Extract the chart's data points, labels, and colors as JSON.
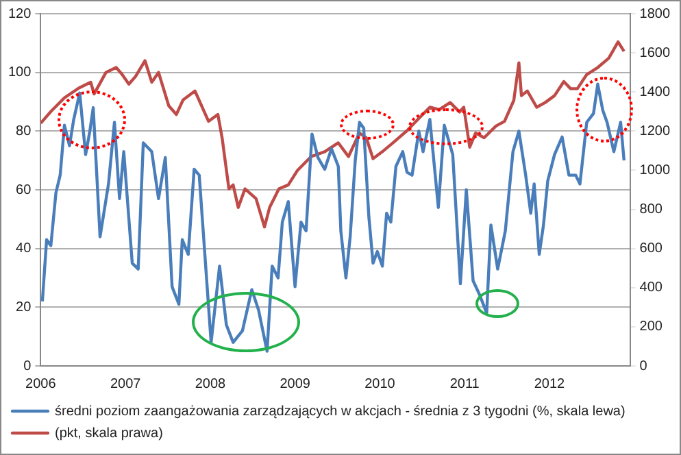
{
  "chart_data": {
    "type": "line",
    "xlim": [
      2006,
      2012.95
    ],
    "xticks": [
      2006,
      2007,
      2008,
      2009,
      2010,
      2011,
      2012
    ],
    "ylim": [
      0,
      120
    ],
    "yticks": [
      0,
      20,
      40,
      60,
      80,
      100,
      120
    ],
    "y2lim": [
      0,
      1800
    ],
    "y2ticks": [
      0,
      200,
      400,
      600,
      800,
      1000,
      1200,
      1400,
      1600,
      1800
    ],
    "grid": "y",
    "legend": "bottom",
    "marker": "none",
    "line_style": "solid",
    "series": [
      {
        "name": "średni poziom zaangażowania zarządzających w akcjach - średnia z 3 tygodni (%, skala lewa)",
        "color": "#4a7ebb",
        "axis": "y",
        "x": [
          2006.02,
          2006.07,
          2006.12,
          2006.18,
          2006.23,
          2006.28,
          2006.34,
          2006.39,
          2006.46,
          2006.53,
          2006.58,
          2006.62,
          2006.7,
          2006.8,
          2006.87,
          2006.93,
          2006.98,
          2007.08,
          2007.15,
          2007.21,
          2007.31,
          2007.39,
          2007.47,
          2007.55,
          2007.63,
          2007.67,
          2007.74,
          2007.81,
          2007.87,
          2008.01,
          2008.11,
          2008.19,
          2008.27,
          2008.38,
          2008.49,
          2008.57,
          2008.67,
          2008.73,
          2008.8,
          2008.85,
          2008.92,
          2009.0,
          2009.07,
          2009.13,
          2009.2,
          2009.27,
          2009.35,
          2009.43,
          2009.51,
          2009.54,
          2009.6,
          2009.65,
          2009.71,
          2009.76,
          2009.81,
          2009.87,
          2009.92,
          2009.97,
          2010.03,
          2010.08,
          2010.13,
          2010.19,
          2010.27,
          2010.32,
          2010.38,
          2010.46,
          2010.51,
          2010.59,
          2010.69,
          2010.76,
          2010.86,
          2010.95,
          2011.02,
          2011.1,
          2011.18,
          2011.26,
          2011.31,
          2011.39,
          2011.48,
          2011.57,
          2011.64,
          2011.72,
          2011.78,
          2011.82,
          2011.88,
          2011.93,
          2011.98,
          2012.06,
          2012.15,
          2012.23,
          2012.31,
          2012.36,
          2012.44,
          2012.52,
          2012.57,
          2012.63,
          2012.68,
          2012.76,
          2012.84,
          2012.88
        ],
        "values": [
          22,
          43,
          41,
          59,
          65,
          82,
          75,
          84,
          93,
          72,
          80,
          88,
          44,
          62,
          83,
          57,
          73,
          35,
          33,
          76,
          73,
          57,
          71,
          27,
          21,
          43,
          38,
          67,
          65,
          8,
          34,
          14,
          8,
          12,
          26,
          19,
          5,
          34,
          30,
          49,
          56,
          27,
          49,
          46,
          79,
          71,
          67,
          74,
          68,
          46,
          30,
          44,
          70,
          83,
          81,
          51,
          35,
          39,
          34,
          52,
          49,
          68,
          73,
          66,
          65,
          80,
          73,
          84,
          54,
          82,
          72,
          28,
          60,
          29,
          24,
          18,
          48,
          33,
          46,
          73,
          80,
          65,
          52,
          62,
          38,
          48,
          63,
          72,
          78,
          65,
          65,
          62,
          83,
          86,
          96,
          87,
          83,
          73,
          83,
          70
        ]
      },
      {
        "name": "(pkt, skala prawa)",
        "color": "#be4b48",
        "axis": "y2",
        "x": [
          2006.0,
          2006.12,
          2006.28,
          2006.45,
          2006.59,
          2006.63,
          2006.77,
          2006.89,
          2006.96,
          2007.04,
          2007.12,
          2007.23,
          2007.31,
          2007.39,
          2007.51,
          2007.6,
          2007.68,
          2007.82,
          2007.98,
          2008.09,
          2008.14,
          2008.22,
          2008.27,
          2008.33,
          2008.41,
          2008.54,
          2008.64,
          2008.7,
          2008.81,
          2008.92,
          2009.03,
          2009.19,
          2009.35,
          2009.51,
          2009.63,
          2009.76,
          2009.84,
          2009.92,
          2010.03,
          2010.16,
          2010.32,
          2010.48,
          2010.59,
          2010.7,
          2010.83,
          2010.94,
          2010.99,
          2011.06,
          2011.13,
          2011.23,
          2011.37,
          2011.47,
          2011.58,
          2011.64,
          2011.67,
          2011.74,
          2011.85,
          2011.95,
          2012.06,
          2012.17,
          2012.25,
          2012.33,
          2012.44,
          2012.57,
          2012.7,
          2012.81,
          2012.88
        ],
        "values": [
          1240,
          1300,
          1370,
          1420,
          1450,
          1390,
          1500,
          1525,
          1490,
          1440,
          1480,
          1560,
          1450,
          1500,
          1330,
          1285,
          1360,
          1405,
          1250,
          1285,
          1165,
          905,
          925,
          810,
          905,
          855,
          710,
          810,
          905,
          925,
          1000,
          1070,
          1095,
          1140,
          1070,
          1190,
          1166,
          1059,
          1095,
          1142,
          1202,
          1274,
          1322,
          1310,
          1346,
          1298,
          1322,
          1118,
          1190,
          1166,
          1226,
          1250,
          1357,
          1549,
          1381,
          1405,
          1322,
          1346,
          1381,
          1453,
          1417,
          1417,
          1489,
          1525,
          1573,
          1656,
          1608
        ]
      }
    ]
  }
}
